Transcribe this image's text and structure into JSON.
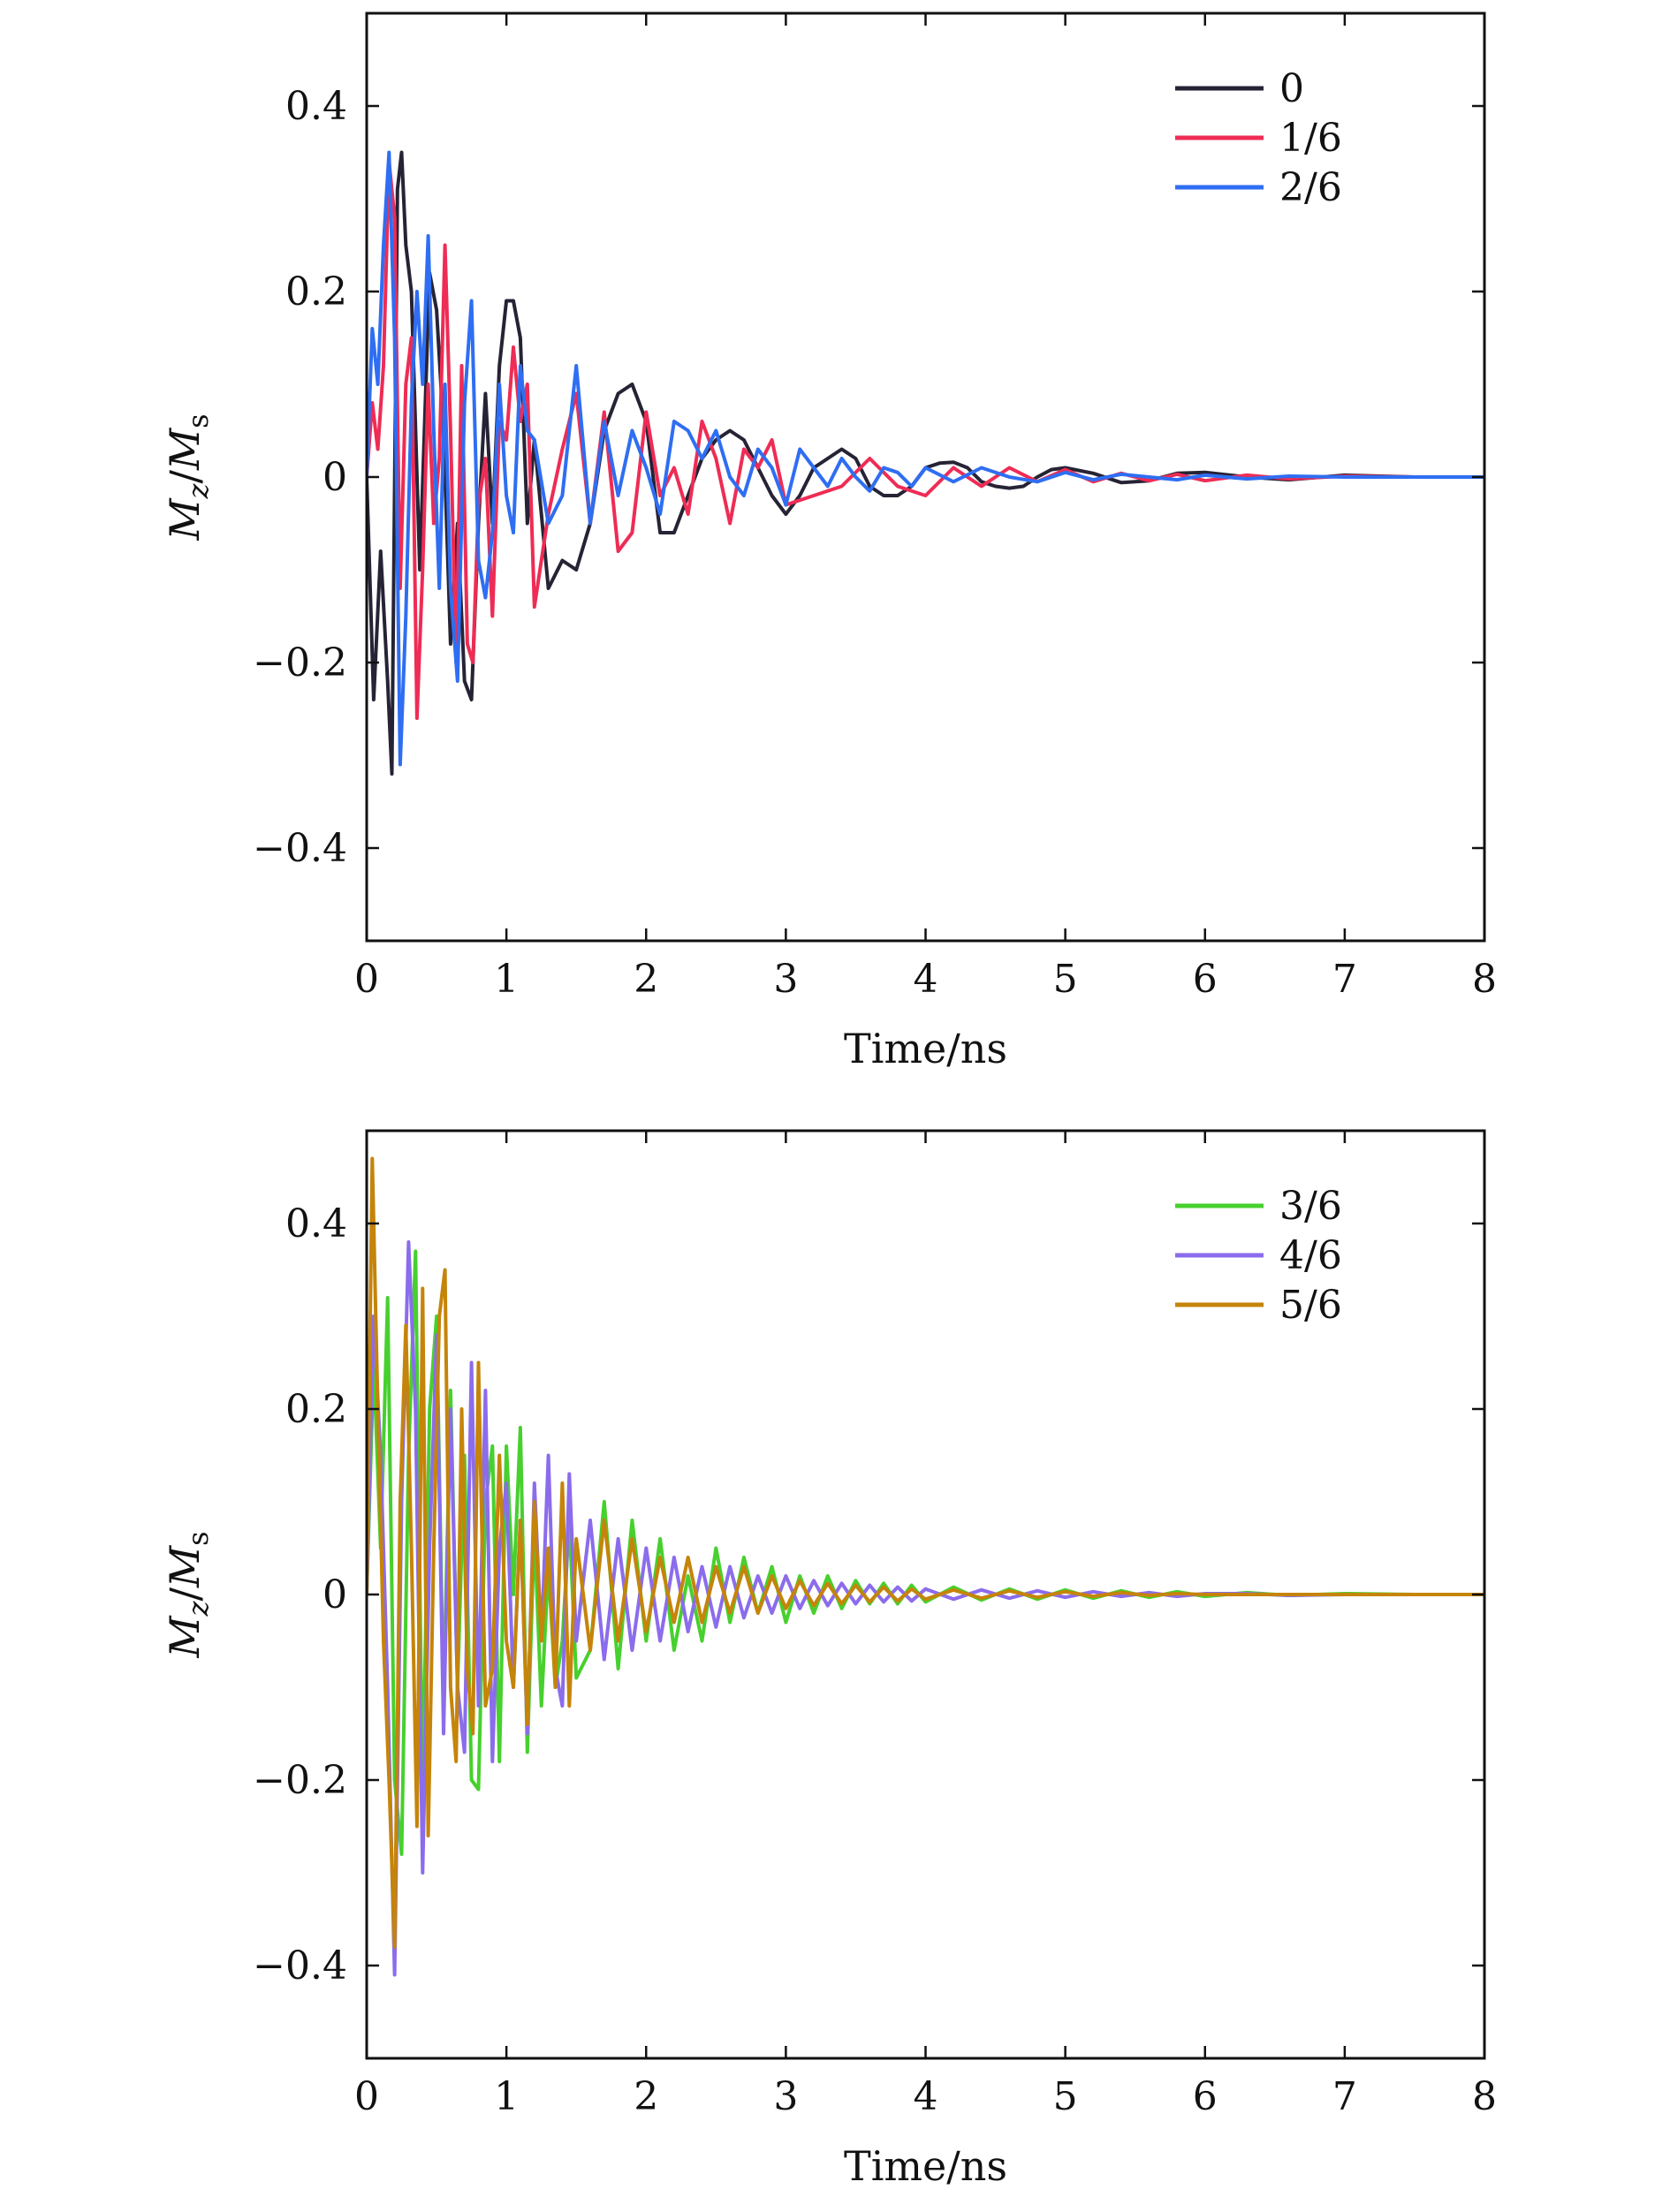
{
  "chart_data": [
    {
      "type": "line",
      "xlabel": "Time/ns",
      "ylabel": {
        "main": "M",
        "sub1": "z",
        "sep": "/",
        "main2": "M",
        "sub2": "s"
      },
      "xlim": [
        0,
        8
      ],
      "ylim": [
        -0.5,
        0.5
      ],
      "xticks": [
        "0",
        "1",
        "2",
        "3",
        "4",
        "5",
        "6",
        "7",
        "8"
      ],
      "yticks": [
        "0.4",
        "0.2",
        "0",
        "−0.2",
        "−0.4"
      ],
      "ytick_values": [
        0.4,
        0.2,
        0,
        -0.2,
        -0.4
      ],
      "grid": false,
      "legend_position": "top-right",
      "series": [
        {
          "name": "0",
          "color": "#262335",
          "x": [
            0,
            0.05,
            0.1,
            0.15,
            0.18,
            0.22,
            0.25,
            0.28,
            0.32,
            0.38,
            0.45,
            0.5,
            0.55,
            0.6,
            0.65,
            0.7,
            0.75,
            0.8,
            0.85,
            0.9,
            0.95,
            1.0,
            1.05,
            1.1,
            1.15,
            1.2,
            1.3,
            1.4,
            1.5,
            1.6,
            1.7,
            1.8,
            1.9,
            2.0,
            2.1,
            2.2,
            2.3,
            2.4,
            2.5,
            2.6,
            2.7,
            2.8,
            2.9,
            3.0,
            3.1,
            3.2,
            3.3,
            3.4,
            3.5,
            3.6,
            3.7,
            3.8,
            3.9,
            4.0,
            4.1,
            4.2,
            4.3,
            4.4,
            4.5,
            4.6,
            4.7,
            4.8,
            4.9,
            5.0,
            5.2,
            5.4,
            5.6,
            5.8,
            6.0,
            6.3,
            6.6,
            7.0,
            7.5,
            8.0
          ],
          "values": [
            0.0,
            -0.24,
            -0.08,
            -0.22,
            -0.32,
            0.31,
            0.35,
            0.25,
            0.2,
            -0.1,
            0.22,
            0.18,
            0.05,
            -0.18,
            -0.05,
            -0.22,
            -0.24,
            -0.05,
            0.09,
            -0.05,
            0.12,
            0.19,
            0.19,
            0.15,
            -0.05,
            0.04,
            -0.12,
            -0.09,
            -0.1,
            -0.05,
            0.05,
            0.09,
            0.1,
            0.06,
            -0.06,
            -0.06,
            -0.02,
            0.02,
            0.04,
            0.05,
            0.04,
            0.01,
            -0.02,
            -0.04,
            -0.02,
            0.01,
            0.02,
            0.03,
            0.02,
            -0.01,
            -0.02,
            -0.02,
            -0.01,
            0.01,
            0.015,
            0.016,
            0.01,
            -0.005,
            -0.01,
            -0.012,
            -0.01,
            0.0,
            0.008,
            0.01,
            0.004,
            -0.006,
            -0.004,
            0.004,
            0.005,
            0.0,
            -0.003,
            0.002,
            0.0,
            0.0
          ]
        },
        {
          "name": "1/6",
          "color": "#ee2c55",
          "x": [
            0,
            0.04,
            0.08,
            0.12,
            0.16,
            0.2,
            0.24,
            0.28,
            0.32,
            0.36,
            0.4,
            0.44,
            0.48,
            0.52,
            0.56,
            0.6,
            0.64,
            0.68,
            0.72,
            0.76,
            0.8,
            0.85,
            0.9,
            0.95,
            1.0,
            1.05,
            1.1,
            1.15,
            1.2,
            1.3,
            1.4,
            1.5,
            1.6,
            1.7,
            1.8,
            1.9,
            2.0,
            2.1,
            2.2,
            2.3,
            2.4,
            2.5,
            2.6,
            2.7,
            2.8,
            2.9,
            3.0,
            3.2,
            3.4,
            3.6,
            3.8,
            4.0,
            4.2,
            4.4,
            4.6,
            4.8,
            5.0,
            5.2,
            5.4,
            5.6,
            5.8,
            6.0,
            6.3,
            6.6,
            7.0,
            7.5,
            8.0
          ],
          "values": [
            0.0,
            0.08,
            0.03,
            0.12,
            0.34,
            0.28,
            -0.12,
            0.1,
            0.15,
            -0.26,
            -0.1,
            0.1,
            -0.05,
            0.02,
            0.25,
            0.05,
            -0.2,
            0.12,
            -0.18,
            -0.2,
            -0.03,
            0.02,
            -0.15,
            0.06,
            0.04,
            0.14,
            0.06,
            0.1,
            -0.14,
            -0.04,
            0.03,
            0.09,
            -0.05,
            0.07,
            -0.08,
            -0.06,
            0.07,
            -0.02,
            0.01,
            -0.04,
            0.06,
            0.02,
            -0.05,
            0.03,
            0.01,
            0.04,
            -0.03,
            -0.02,
            -0.01,
            0.02,
            -0.01,
            -0.02,
            0.01,
            -0.01,
            0.01,
            -0.005,
            0.008,
            -0.005,
            0.004,
            -0.004,
            0.003,
            -0.004,
            0.002,
            -0.002,
            0.001,
            0.0,
            0.0
          ]
        },
        {
          "name": "2/6",
          "color": "#2f6ef2",
          "x": [
            0,
            0.04,
            0.08,
            0.12,
            0.16,
            0.2,
            0.24,
            0.28,
            0.32,
            0.36,
            0.4,
            0.44,
            0.48,
            0.52,
            0.56,
            0.6,
            0.65,
            0.7,
            0.75,
            0.8,
            0.85,
            0.9,
            0.95,
            1.0,
            1.05,
            1.1,
            1.15,
            1.2,
            1.3,
            1.4,
            1.5,
            1.6,
            1.7,
            1.8,
            1.9,
            2.0,
            2.1,
            2.2,
            2.3,
            2.4,
            2.5,
            2.6,
            2.7,
            2.8,
            2.9,
            3.0,
            3.1,
            3.2,
            3.3,
            3.4,
            3.5,
            3.6,
            3.7,
            3.8,
            3.9,
            4.0,
            4.2,
            4.4,
            4.6,
            4.8,
            5.0,
            5.2,
            5.4,
            5.6,
            5.8,
            6.0,
            6.3,
            6.6,
            7.0,
            7.5,
            8.0
          ],
          "values": [
            0.0,
            0.16,
            0.1,
            0.25,
            0.35,
            0.15,
            -0.31,
            -0.15,
            0.08,
            0.2,
            0.1,
            0.26,
            0.05,
            -0.12,
            0.1,
            -0.12,
            -0.22,
            0.08,
            0.19,
            -0.09,
            -0.13,
            -0.06,
            0.1,
            -0.02,
            -0.06,
            0.12,
            0.05,
            0.04,
            -0.05,
            -0.02,
            0.12,
            -0.05,
            0.06,
            -0.02,
            0.05,
            0.01,
            -0.04,
            0.06,
            0.05,
            0.02,
            0.05,
            0.0,
            -0.02,
            0.03,
            0.01,
            -0.03,
            0.03,
            0.01,
            -0.01,
            0.02,
            0.0,
            -0.015,
            0.01,
            0.005,
            -0.01,
            0.01,
            -0.005,
            0.01,
            0.0,
            -0.005,
            0.005,
            -0.003,
            0.003,
            0.0,
            -0.003,
            0.002,
            -0.002,
            0.001,
            0.0,
            0.0,
            0.0
          ]
        }
      ]
    },
    {
      "type": "line",
      "xlabel": "Time/ns",
      "ylabel": {
        "main": "M",
        "sub1": "z",
        "sep": "/",
        "main2": "M",
        "sub2": "s"
      },
      "xlim": [
        0,
        8
      ],
      "ylim": [
        -0.5,
        0.5
      ],
      "xticks": [
        "0",
        "1",
        "2",
        "3",
        "4",
        "5",
        "6",
        "7",
        "8"
      ],
      "yticks": [
        "0.4",
        "0.2",
        "0",
        "−0.2",
        "−0.4"
      ],
      "ytick_values": [
        0.4,
        0.2,
        0,
        -0.2,
        -0.4
      ],
      "grid": false,
      "legend_position": "top-right",
      "series": [
        {
          "name": "3/6",
          "color": "#47d02e",
          "x": [
            0,
            0.05,
            0.1,
            0.15,
            0.2,
            0.25,
            0.3,
            0.35,
            0.4,
            0.45,
            0.5,
            0.55,
            0.6,
            0.65,
            0.7,
            0.75,
            0.8,
            0.85,
            0.9,
            0.95,
            1.0,
            1.05,
            1.1,
            1.15,
            1.2,
            1.25,
            1.3,
            1.35,
            1.4,
            1.45,
            1.5,
            1.6,
            1.7,
            1.8,
            1.9,
            2.0,
            2.1,
            2.2,
            2.3,
            2.4,
            2.5,
            2.6,
            2.7,
            2.8,
            2.9,
            3.0,
            3.1,
            3.2,
            3.3,
            3.4,
            3.5,
            3.6,
            3.7,
            3.8,
            3.9,
            4.0,
            4.2,
            4.4,
            4.6,
            4.8,
            5.0,
            5.2,
            5.4,
            5.6,
            5.8,
            6.0,
            6.3,
            6.6,
            7.0,
            7.5,
            8.0
          ],
          "values": [
            0.0,
            0.25,
            0.05,
            0.32,
            -0.2,
            -0.28,
            0.15,
            0.37,
            -0.22,
            0.2,
            0.3,
            -0.12,
            0.22,
            -0.1,
            0.15,
            -0.2,
            -0.21,
            0.1,
            0.16,
            -0.18,
            0.16,
            0.0,
            0.18,
            -0.17,
            0.07,
            -0.12,
            0.03,
            -0.1,
            -0.05,
            0.08,
            -0.09,
            -0.06,
            0.1,
            -0.08,
            0.08,
            -0.05,
            0.06,
            -0.06,
            0.02,
            -0.05,
            0.05,
            -0.03,
            0.04,
            -0.02,
            0.03,
            -0.03,
            0.02,
            -0.02,
            0.02,
            -0.015,
            0.015,
            -0.01,
            0.012,
            -0.01,
            0.01,
            -0.008,
            0.008,
            -0.006,
            0.006,
            -0.005,
            0.005,
            -0.004,
            0.004,
            -0.003,
            0.003,
            -0.002,
            0.002,
            -0.001,
            0.001,
            0.0,
            0.0
          ]
        },
        {
          "name": "4/6",
          "color": "#8b6cec",
          "x": [
            0,
            0.05,
            0.1,
            0.15,
            0.2,
            0.25,
            0.3,
            0.35,
            0.4,
            0.45,
            0.5,
            0.55,
            0.6,
            0.65,
            0.7,
            0.75,
            0.8,
            0.85,
            0.9,
            0.95,
            1.0,
            1.05,
            1.1,
            1.15,
            1.2,
            1.25,
            1.3,
            1.35,
            1.4,
            1.45,
            1.5,
            1.6,
            1.7,
            1.8,
            1.9,
            2.0,
            2.1,
            2.2,
            2.3,
            2.4,
            2.5,
            2.6,
            2.7,
            2.8,
            2.9,
            3.0,
            3.1,
            3.2,
            3.3,
            3.4,
            3.5,
            3.6,
            3.7,
            3.8,
            3.9,
            4.0,
            4.2,
            4.4,
            4.6,
            4.8,
            5.0,
            5.2,
            5.4,
            5.6,
            5.8,
            6.0,
            6.3,
            6.6,
            7.0,
            7.5,
            8.0
          ],
          "values": [
            0.0,
            0.3,
            0.15,
            -0.1,
            -0.41,
            0.1,
            0.38,
            0.2,
            -0.3,
            0.05,
            0.28,
            -0.15,
            0.2,
            -0.1,
            -0.17,
            0.25,
            -0.12,
            0.22,
            -0.18,
            0.05,
            0.12,
            -0.1,
            0.08,
            -0.15,
            0.12,
            -0.05,
            0.15,
            -0.08,
            -0.12,
            0.13,
            -0.05,
            0.08,
            -0.07,
            0.06,
            -0.06,
            0.05,
            -0.05,
            0.04,
            -0.04,
            0.03,
            -0.035,
            0.03,
            -0.025,
            0.02,
            -0.02,
            0.02,
            -0.015,
            0.015,
            -0.012,
            0.012,
            -0.01,
            0.01,
            -0.008,
            0.008,
            -0.007,
            0.006,
            -0.005,
            0.005,
            -0.004,
            0.004,
            -0.003,
            0.003,
            -0.002,
            0.002,
            -0.002,
            0.001,
            0.001,
            -0.001,
            0.0,
            0.0,
            0.0
          ]
        },
        {
          "name": "5/6",
          "color": "#c5840a",
          "x": [
            0,
            0.04,
            0.08,
            0.12,
            0.16,
            0.2,
            0.24,
            0.28,
            0.32,
            0.36,
            0.4,
            0.44,
            0.48,
            0.52,
            0.56,
            0.6,
            0.64,
            0.68,
            0.72,
            0.76,
            0.8,
            0.85,
            0.9,
            0.95,
            1.0,
            1.05,
            1.1,
            1.15,
            1.2,
            1.25,
            1.3,
            1.35,
            1.4,
            1.45,
            1.5,
            1.6,
            1.7,
            1.8,
            1.9,
            2.0,
            2.1,
            2.2,
            2.3,
            2.4,
            2.5,
            2.6,
            2.7,
            2.8,
            2.9,
            3.0,
            3.1,
            3.2,
            3.3,
            3.4,
            3.5,
            3.6,
            3.7,
            3.8,
            3.9,
            4.0,
            4.2,
            4.4,
            4.6,
            4.8,
            5.0,
            5.2,
            5.4,
            5.6,
            5.8,
            6.0,
            6.3,
            6.6,
            7.0,
            7.5,
            8.0
          ],
          "values": [
            0.0,
            0.47,
            0.2,
            -0.05,
            -0.2,
            -0.38,
            0.1,
            0.29,
            0.05,
            -0.25,
            0.33,
            -0.26,
            0.05,
            0.3,
            0.35,
            -0.1,
            -0.18,
            0.2,
            -0.08,
            -0.15,
            0.25,
            -0.12,
            -0.08,
            0.15,
            -0.05,
            -0.1,
            0.08,
            -0.14,
            0.1,
            -0.05,
            0.05,
            -0.1,
            0.12,
            -0.12,
            0.06,
            -0.06,
            0.08,
            -0.05,
            0.06,
            -0.04,
            0.04,
            -0.03,
            0.04,
            -0.03,
            0.03,
            -0.02,
            0.03,
            -0.02,
            0.02,
            -0.015,
            0.015,
            -0.012,
            0.012,
            -0.01,
            0.01,
            -0.008,
            0.008,
            -0.007,
            0.006,
            -0.005,
            0.005,
            -0.004,
            0.004,
            -0.003,
            0.003,
            -0.002,
            0.002,
            -0.001,
            0.001,
            0.0,
            0.0,
            0.0,
            0.0,
            0.0,
            0.0
          ]
        }
      ]
    }
  ]
}
